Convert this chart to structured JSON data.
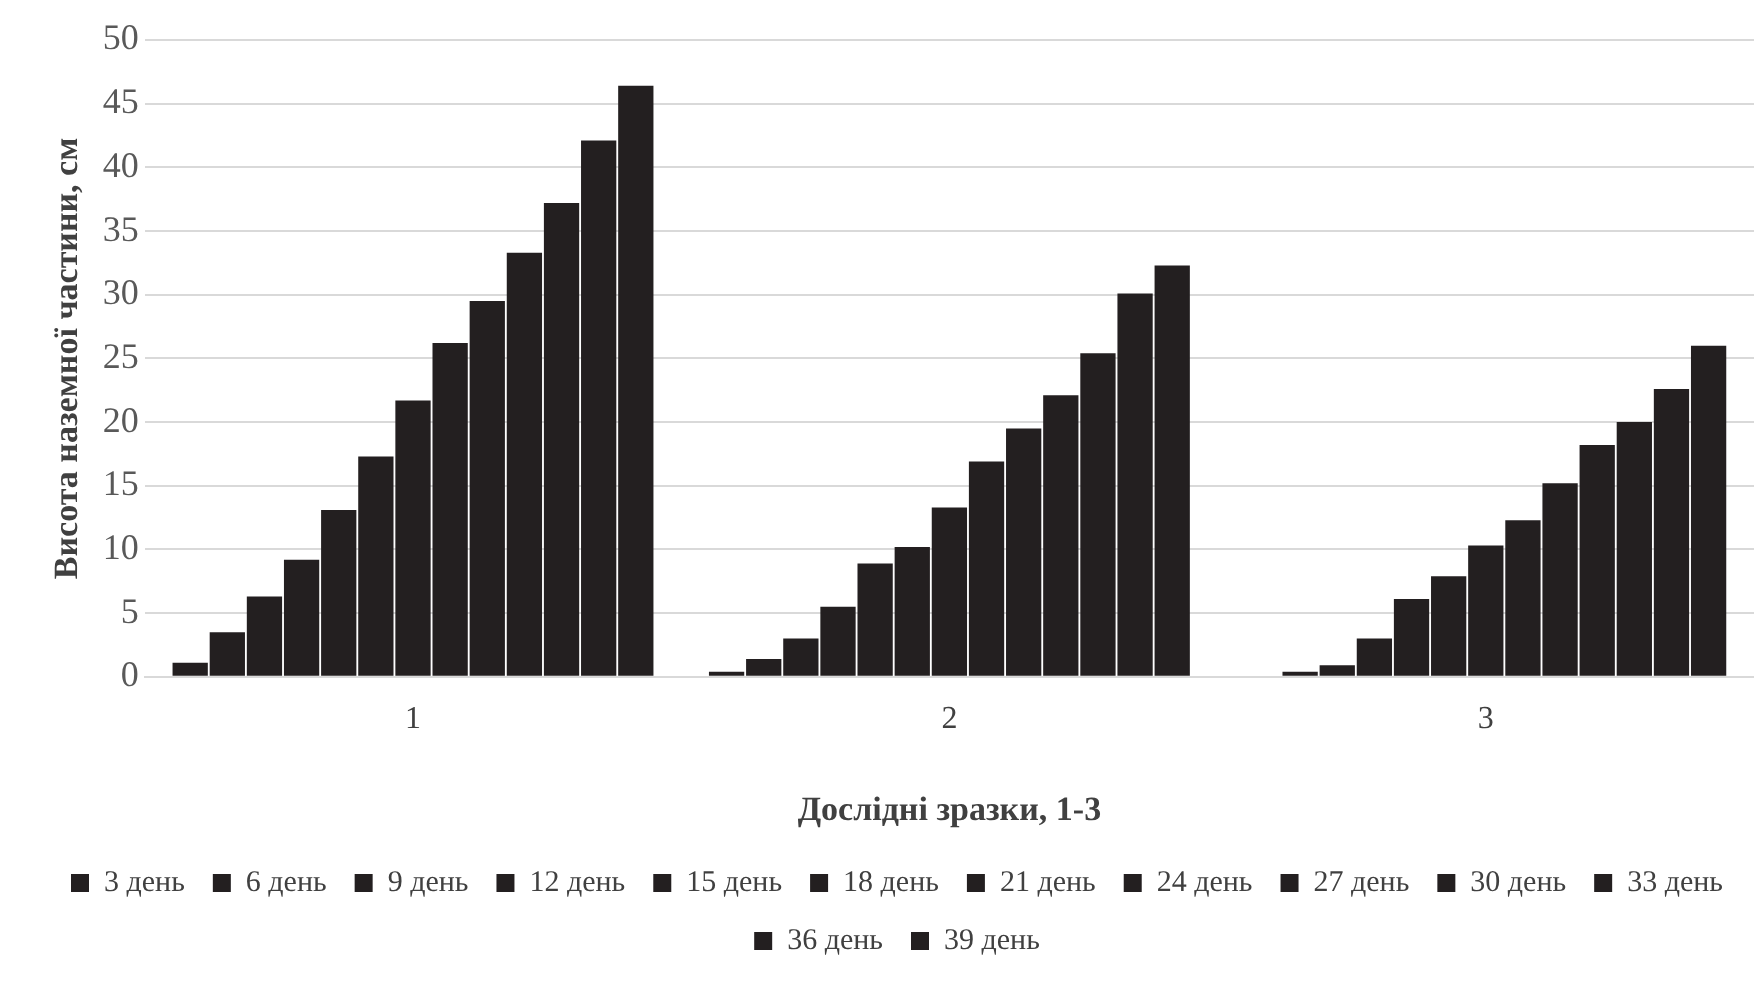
{
  "chart_data": {
    "type": "bar",
    "xlabel": "Дослідні зразки, 1-3",
    "ylabel": "Висота наземної частини, см",
    "categories": [
      "1",
      "2",
      "3"
    ],
    "series": [
      {
        "name": "3 день",
        "color": "#231f20",
        "values": [
          1.1,
          0.4,
          null
        ]
      },
      {
        "name": "6 день",
        "color": "#231f20",
        "values": [
          3.5,
          1.4,
          0.4
        ]
      },
      {
        "name": "9 день",
        "color": "#231f20",
        "values": [
          6.3,
          3.0,
          0.9
        ]
      },
      {
        "name": "12 день",
        "color": "#231f20",
        "values": [
          9.2,
          5.5,
          3.0
        ]
      },
      {
        "name": "15 день",
        "color": "#231f20",
        "values": [
          13.1,
          8.9,
          6.1
        ]
      },
      {
        "name": "18 день",
        "color": "#231f20",
        "values": [
          17.3,
          10.2,
          7.9
        ]
      },
      {
        "name": "21 день",
        "color": "#231f20",
        "values": [
          21.7,
          13.3,
          10.3
        ]
      },
      {
        "name": "24 день",
        "color": "#231f20",
        "values": [
          26.2,
          16.9,
          12.3
        ]
      },
      {
        "name": "27 день",
        "color": "#231f20",
        "values": [
          29.5,
          19.5,
          15.2
        ]
      },
      {
        "name": "30 день",
        "color": "#231f20",
        "values": [
          33.3,
          22.1,
          18.2
        ]
      },
      {
        "name": "33 день",
        "color": "#231f20",
        "values": [
          37.2,
          25.4,
          20.0
        ]
      },
      {
        "name": "36 день",
        "color": "#231f20",
        "values": [
          42.1,
          30.1,
          22.6
        ]
      },
      {
        "name": "39 день",
        "color": "#231f20",
        "values": [
          46.4,
          32.3,
          26.0
        ]
      }
    ],
    "ylim": [
      0,
      50
    ],
    "yticks": [
      0,
      5,
      10,
      15,
      20,
      25,
      30,
      35,
      40,
      45,
      50
    ],
    "grid": "y",
    "legend": "bottom"
  }
}
